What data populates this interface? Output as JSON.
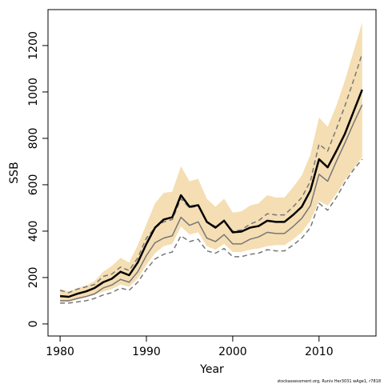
{
  "chart_data": {
    "type": "line",
    "xlabel": "Year",
    "ylabel": "SSB",
    "footnote": "stockassessment.org, Runiv Her3031 wAge1, r7818",
    "x": [
      1980,
      1981,
      1982,
      1983,
      1984,
      1985,
      1986,
      1987,
      1988,
      1989,
      1990,
      1991,
      1992,
      1993,
      1994,
      1995,
      1996,
      1997,
      1998,
      1999,
      2000,
      2001,
      2002,
      2003,
      2004,
      2005,
      2006,
      2007,
      2008,
      2009,
      2010,
      2011,
      2012,
      2013,
      2014,
      2015
    ],
    "band": {
      "color": "#f5deb3",
      "upper": [
        150,
        140,
        155,
        165,
        185,
        225,
        250,
        285,
        265,
        340,
        430,
        520,
        565,
        570,
        680,
        615,
        625,
        540,
        505,
        540,
        480,
        485,
        510,
        520,
        555,
        545,
        545,
        590,
        640,
        730,
        890,
        850,
        940,
        1050,
        1175,
        1300
      ],
      "lower": [
        95,
        95,
        105,
        115,
        125,
        140,
        150,
        170,
        160,
        195,
        255,
        305,
        335,
        345,
        420,
        385,
        395,
        335,
        320,
        345,
        310,
        310,
        320,
        325,
        335,
        340,
        340,
        365,
        395,
        445,
        530,
        510,
        560,
        620,
        670,
        720
      ]
    },
    "series": [
      {
        "color": "#777777",
        "style": "dashed",
        "width": 1.5,
        "values": [
          145,
          135,
          150,
          160,
          170,
          205,
          215,
          245,
          230,
          285,
          370,
          415,
          440,
          450,
          540,
          500,
          510,
          440,
          420,
          445,
          400,
          405,
          430,
          445,
          475,
          470,
          470,
          505,
          545,
          615,
          775,
          745,
          840,
          940,
          1050,
          1165
        ]
      },
      {
        "color": "#777777",
        "style": "dashed",
        "width": 1.5,
        "values": [
          90,
          90,
          95,
          100,
          110,
          125,
          135,
          155,
          145,
          180,
          235,
          280,
          300,
          310,
          380,
          355,
          365,
          315,
          305,
          325,
          290,
          290,
          300,
          305,
          320,
          315,
          315,
          340,
          370,
          415,
          520,
          490,
          545,
          610,
          665,
          710
        ]
      },
      {
        "color": "#777777",
        "style": "solid",
        "width": 1.5,
        "values": [
          100,
          100,
          110,
          118,
          130,
          155,
          168,
          192,
          180,
          225,
          295,
          350,
          370,
          380,
          460,
          425,
          440,
          370,
          355,
          385,
          345,
          345,
          365,
          375,
          395,
          390,
          390,
          420,
          455,
          510,
          645,
          615,
          700,
          780,
          865,
          945
        ]
      },
      {
        "color": "#000000",
        "style": "solid",
        "width": 2.5,
        "values": [
          120,
          117,
          130,
          140,
          155,
          180,
          195,
          225,
          210,
          265,
          345,
          415,
          450,
          460,
          555,
          505,
          512,
          440,
          415,
          445,
          395,
          398,
          415,
          422,
          445,
          440,
          440,
          470,
          505,
          575,
          710,
          675,
          745,
          820,
          915,
          1010
        ]
      }
    ],
    "xlim": [
      1978.6,
      2016.6
    ],
    "ylim": [
      -52,
      1355
    ],
    "xticks": [
      1980,
      1990,
      2000,
      2010
    ],
    "yticks": [
      0,
      200,
      400,
      600,
      800,
      1000,
      1200
    ]
  }
}
